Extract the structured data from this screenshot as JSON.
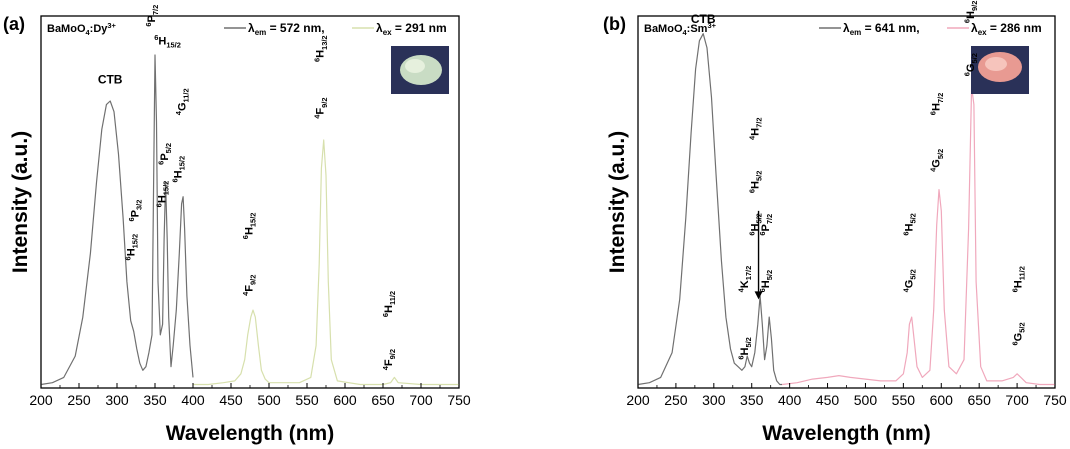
{
  "chart_data": [
    {
      "type": "line",
      "panel_label": "(a)",
      "sample": {
        "base": "BaMoO",
        "sub": "4",
        "mid": ":Dy",
        "sup": "3+"
      },
      "legend": [
        {
          "lambda_sub": "em",
          "text": " = 572 nm,",
          "color": "#707070"
        },
        {
          "lambda_sub": "ex",
          "text": " = 291 nm",
          "color": "#d7e0ad"
        }
      ],
      "inset_photo": "green-white phosphor powder",
      "xlabel": "Wavelength (nm)",
      "ylabel": "Intensity (a.u.)",
      "xlim": [
        200,
        750
      ],
      "ylim": [
        0,
        1.05
      ],
      "x_ticks": [
        200,
        250,
        300,
        350,
        400,
        450,
        500,
        550,
        600,
        650,
        700,
        750
      ],
      "series": [
        {
          "color": "#707070",
          "x": [
            200,
            215,
            230,
            245,
            255,
            265,
            273,
            280,
            286,
            291,
            296,
            302,
            308,
            313,
            318,
            322,
            326,
            330,
            334,
            338,
            342,
            346,
            348,
            350,
            352,
            354,
            357,
            360,
            362,
            364,
            366,
            368,
            371,
            374,
            378,
            382,
            385,
            387,
            389,
            392,
            396,
            400
          ],
          "y": [
            0.01,
            0.015,
            0.03,
            0.09,
            0.2,
            0.38,
            0.58,
            0.73,
            0.8,
            0.81,
            0.78,
            0.66,
            0.48,
            0.3,
            0.19,
            0.16,
            0.11,
            0.07,
            0.05,
            0.06,
            0.1,
            0.15,
            0.55,
            0.94,
            0.75,
            0.3,
            0.15,
            0.18,
            0.42,
            0.58,
            0.42,
            0.2,
            0.06,
            0.12,
            0.22,
            0.38,
            0.52,
            0.54,
            0.45,
            0.26,
            0.12,
            0.03
          ]
        },
        {
          "color": "#d7e0ad",
          "x": [
            400,
            420,
            440,
            455,
            463,
            468,
            472,
            476,
            479,
            482,
            486,
            490,
            495,
            500,
            520,
            540,
            555,
            562,
            566,
            569,
            572,
            575,
            578,
            582,
            590,
            620,
            650,
            660,
            665,
            670,
            700,
            750
          ],
          "y": [
            0.01,
            0.01,
            0.015,
            0.02,
            0.04,
            0.08,
            0.15,
            0.2,
            0.22,
            0.2,
            0.12,
            0.05,
            0.025,
            0.015,
            0.015,
            0.015,
            0.03,
            0.12,
            0.35,
            0.62,
            0.7,
            0.6,
            0.3,
            0.08,
            0.02,
            0.01,
            0.01,
            0.015,
            0.03,
            0.015,
            0.01,
            0.01
          ]
        }
      ],
      "annotations": [
        {
          "text": "CTB",
          "x": 291,
          "y": 0.86
        },
        {
          "parts": [
            [
              "6",
              "sup"
            ],
            [
              "P",
              "base"
            ],
            [
              "7/2",
              "sub"
            ]
          ],
          "x": 350,
          "y": 1.02,
          "rotate": -90
        },
        {
          "parts": [
            [
              "6",
              "sup"
            ],
            [
              "H",
              "base"
            ],
            [
              "15/2",
              "sub"
            ]
          ],
          "x": 349,
          "y": 0.97,
          "rotate": 0
        },
        {
          "parts": [
            [
              "4",
              "sup"
            ],
            [
              "G",
              "base"
            ],
            [
              "11/2",
              "sub"
            ]
          ],
          "x": 390,
          "y": 0.77,
          "rotate": -90
        },
        {
          "parts": [
            [
              "6",
              "sup"
            ],
            [
              "P",
              "base"
            ],
            [
              "5/2",
              "sub"
            ]
          ],
          "x": 367,
          "y": 0.63,
          "rotate": -90
        },
        {
          "parts": [
            [
              "6",
              "sup"
            ],
            [
              "H",
              "base"
            ],
            [
              "15/2",
              "sub"
            ]
          ],
          "x": 385,
          "y": 0.58,
          "rotate": -90
        },
        {
          "parts": [
            [
              "6",
              "sup"
            ],
            [
              "H",
              "base"
            ],
            [
              "15/2",
              "sub"
            ]
          ],
          "x": 364,
          "y": 0.51,
          "rotate": -90
        },
        {
          "parts": [
            [
              "6",
              "sup"
            ],
            [
              "P",
              "base"
            ],
            [
              "3/2",
              "sub"
            ]
          ],
          "x": 328,
          "y": 0.47,
          "rotate": -90
        },
        {
          "parts": [
            [
              "6",
              "sup"
            ],
            [
              "H",
              "base"
            ],
            [
              "15/2",
              "sub"
            ]
          ],
          "x": 323,
          "y": 0.36,
          "rotate": -90
        },
        {
          "parts": [
            [
              "6",
              "sup"
            ],
            [
              "H",
              "base"
            ],
            [
              "15/2",
              "sub"
            ]
          ],
          "x": 478,
          "y": 0.42,
          "rotate": -90
        },
        {
          "parts": [
            [
              "4",
              "sup"
            ],
            [
              "F",
              "base"
            ],
            [
              "9/2",
              "sub"
            ]
          ],
          "x": 478,
          "y": 0.26,
          "rotate": -90
        },
        {
          "parts": [
            [
              "6",
              "sup"
            ],
            [
              "H",
              "base"
            ],
            [
              "13/2",
              "sub"
            ]
          ],
          "x": 572,
          "y": 0.92,
          "rotate": -90
        },
        {
          "parts": [
            [
              "4",
              "sup"
            ],
            [
              "F",
              "base"
            ],
            [
              "9/2",
              "sub"
            ]
          ],
          "x": 572,
          "y": 0.76,
          "rotate": -90
        },
        {
          "parts": [
            [
              "6",
              "sup"
            ],
            [
              "H",
              "base"
            ],
            [
              "11/2",
              "sub"
            ]
          ],
          "x": 662,
          "y": 0.2,
          "rotate": -90
        },
        {
          "parts": [
            [
              "4",
              "sup"
            ],
            [
              "F",
              "base"
            ],
            [
              "9/2",
              "sub"
            ]
          ],
          "x": 662,
          "y": 0.05,
          "rotate": -90
        }
      ]
    },
    {
      "type": "line",
      "panel_label": "(b)",
      "sample": {
        "base": "BaMoO",
        "sub": "4",
        "mid": ":Sm",
        "sup": "3+"
      },
      "legend": [
        {
          "lambda_sub": "em",
          "text": " = 641 nm,",
          "color": "#707070"
        },
        {
          "lambda_sub": "ex",
          "text": " = 286 nm",
          "color": "#f0a8bc"
        }
      ],
      "inset_photo": "pink phosphor powder",
      "xlabel": "Wavelength (nm)",
      "ylabel": "Intensity (a.u.)",
      "xlim": [
        200,
        750
      ],
      "ylim": [
        0,
        1.05
      ],
      "x_ticks": [
        200,
        250,
        300,
        350,
        400,
        450,
        500,
        550,
        600,
        650,
        700,
        750
      ],
      "series": [
        {
          "color": "#707070",
          "x": [
            200,
            215,
            230,
            245,
            255,
            263,
            270,
            276,
            281,
            286,
            291,
            297,
            303,
            310,
            316,
            322,
            327,
            332,
            337,
            341,
            344,
            347,
            350,
            354,
            358,
            361,
            364,
            367,
            370,
            373,
            376,
            379,
            383,
            387,
            390
          ],
          "y": [
            0.01,
            0.015,
            0.03,
            0.1,
            0.25,
            0.48,
            0.72,
            0.9,
            0.98,
            1.0,
            0.96,
            0.82,
            0.6,
            0.36,
            0.2,
            0.11,
            0.07,
            0.06,
            0.05,
            0.06,
            0.09,
            0.07,
            0.06,
            0.1,
            0.18,
            0.26,
            0.18,
            0.08,
            0.12,
            0.2,
            0.14,
            0.05,
            0.02,
            0.01,
            0.01
          ]
        },
        {
          "color": "#f0a8bc",
          "x": [
            390,
            410,
            430,
            450,
            465,
            480,
            500,
            520,
            540,
            550,
            555,
            558,
            561,
            564,
            568,
            575,
            585,
            590,
            594,
            597,
            600,
            604,
            610,
            620,
            630,
            636,
            640,
            643,
            646,
            652,
            660,
            680,
            695,
            700,
            705,
            712,
            730,
            750
          ],
          "y": [
            0.01,
            0.015,
            0.025,
            0.03,
            0.035,
            0.03,
            0.025,
            0.02,
            0.02,
            0.04,
            0.1,
            0.18,
            0.2,
            0.14,
            0.06,
            0.03,
            0.05,
            0.22,
            0.46,
            0.56,
            0.5,
            0.22,
            0.06,
            0.04,
            0.08,
            0.45,
            0.85,
            0.8,
            0.3,
            0.06,
            0.02,
            0.02,
            0.03,
            0.04,
            0.03,
            0.015,
            0.01,
            0.01
          ]
        }
      ],
      "annotations": [
        {
          "text": "CTB",
          "x": 286,
          "y": 1.03
        },
        {
          "parts": [
            [
              "6",
              "sup"
            ],
            [
              "H",
              "base"
            ],
            [
              "9/2",
              "sub"
            ]
          ],
          "x": 643,
          "y": 1.03,
          "rotate": -90
        },
        {
          "parts": [
            [
              "6",
              "sup"
            ],
            [
              "G",
              "base"
            ],
            [
              "5/2",
              "sub"
            ]
          ],
          "x": 643,
          "y": 0.88,
          "rotate": -90
        },
        {
          "parts": [
            [
              "6",
              "sup"
            ],
            [
              "H",
              "base"
            ],
            [
              "7/2",
              "sub"
            ]
          ],
          "x": 598,
          "y": 0.77,
          "rotate": -90
        },
        {
          "parts": [
            [
              "4",
              "sup"
            ],
            [
              "G",
              "base"
            ],
            [
              "5/2",
              "sub"
            ]
          ],
          "x": 598,
          "y": 0.61,
          "rotate": -90
        },
        {
          "parts": [
            [
              "6",
              "sup"
            ],
            [
              "H",
              "base"
            ],
            [
              "5/2",
              "sub"
            ]
          ],
          "x": 562,
          "y": 0.43,
          "rotate": -90
        },
        {
          "parts": [
            [
              "4",
              "sup"
            ],
            [
              "G",
              "base"
            ],
            [
              "5/2",
              "sub"
            ]
          ],
          "x": 562,
          "y": 0.27,
          "rotate": -90
        },
        {
          "parts": [
            [
              "6",
              "sup"
            ],
            [
              "H",
              "base"
            ],
            [
              "11/2",
              "sub"
            ]
          ],
          "x": 706,
          "y": 0.27,
          "rotate": -90
        },
        {
          "parts": [
            [
              "6",
              "sup"
            ],
            [
              "G",
              "base"
            ],
            [
              "5/2",
              "sub"
            ]
          ],
          "x": 706,
          "y": 0.12,
          "rotate": -90
        },
        {
          "parts": [
            [
              "4",
              "sup"
            ],
            [
              "H",
              "base"
            ],
            [
              "7/2",
              "sub"
            ]
          ],
          "x": 359,
          "y": 0.7,
          "rotate": -90
        },
        {
          "parts": [
            [
              "6",
              "sup"
            ],
            [
              "H",
              "base"
            ],
            [
              "5/2",
              "sub"
            ]
          ],
          "x": 359,
          "y": 0.55,
          "rotate": -90
        },
        {
          "parts": [
            [
              "6",
              "sup"
            ],
            [
              "H",
              "base"
            ],
            [
              "5/2",
              "sub"
            ]
          ],
          "x": 359,
          "y": 0.43,
          "rotate": -90
        },
        {
          "parts": [
            [
              "6",
              "sup"
            ],
            [
              "P",
              "base"
            ],
            [
              "7/2",
              "sub"
            ]
          ],
          "x": 373,
          "y": 0.43,
          "rotate": -90
        },
        {
          "parts": [
            [
              "4",
              "sup"
            ],
            [
              "K",
              "base"
            ],
            [
              "17/2",
              "sub"
            ]
          ],
          "x": 345,
          "y": 0.27,
          "rotate": -90
        },
        {
          "parts": [
            [
              "6",
              "sup"
            ],
            [
              "H",
              "base"
            ],
            [
              "5/2",
              "sub"
            ]
          ],
          "x": 373,
          "y": 0.27,
          "rotate": -90
        },
        {
          "parts": [
            [
              "6",
              "sup"
            ],
            [
              "H",
              "base"
            ],
            [
              "5/2",
              "sub"
            ]
          ],
          "x": 345,
          "y": 0.08,
          "rotate": -90
        }
      ],
      "arrow": {
        "x": 359,
        "y_from": 0.5,
        "y_to": 0.25
      }
    }
  ]
}
